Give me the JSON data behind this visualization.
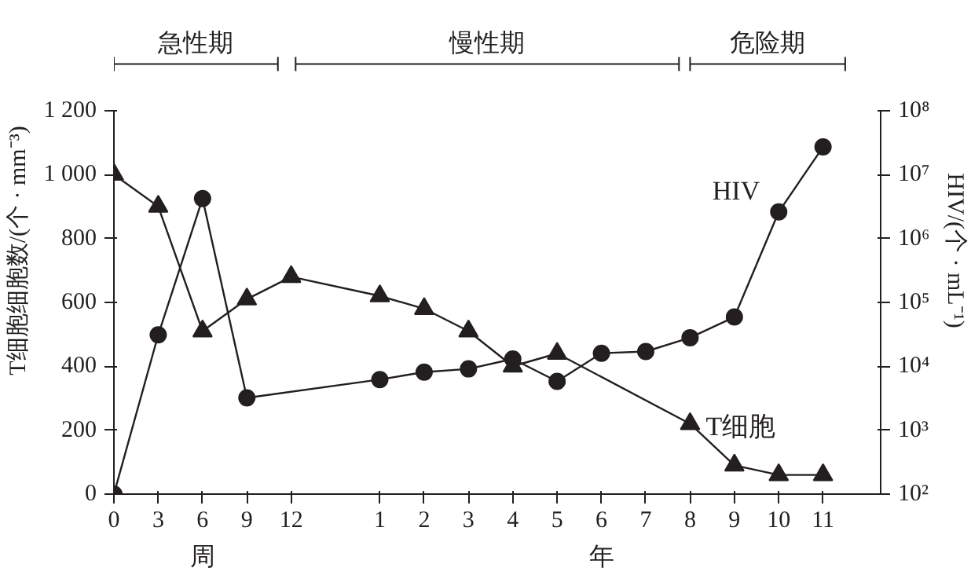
{
  "chart_data": {
    "type": "line",
    "ylabel": "T细胞细胞数/(个 · mm⁻³)",
    "y2label": "HIV/(个 · mL⁻¹)",
    "annotations": [
      "急性期",
      "慢性期",
      "危险期",
      "周",
      "年"
    ],
    "categories": [
      "0",
      "3",
      "6",
      "9",
      "12",
      null,
      "1",
      "2",
      "3",
      "4",
      "5",
      "6",
      "7",
      "8",
      "9",
      "10",
      "11"
    ],
    "ylim": [
      0,
      1200
    ],
    "yticks": [
      0,
      200,
      400,
      600,
      800,
      {
        "value": 1000,
        "label": "1 000"
      },
      {
        "value": 1200,
        "label": "1 200"
      }
    ],
    "y2lim": [
      100,
      100000000
    ],
    "y2ticks": [
      {
        "value": 100,
        "label": "10²"
      },
      {
        "value": 1000,
        "label": "10³"
      },
      {
        "value": 10000,
        "label": "10⁴"
      },
      {
        "value": 100000,
        "label": "10⁵"
      },
      {
        "value": 1000000,
        "label": "10⁶"
      },
      {
        "value": 10000000,
        "label": "10⁷"
      },
      {
        "value": 100000000,
        "label": "10⁸"
      }
    ],
    "log": "y2",
    "grid": false,
    "series": [
      {
        "name": "T细胞",
        "color": "#231f20",
        "marker": "triangle",
        "values": [
          1000,
          900,
          510,
          610,
          680,
          null,
          620,
          580,
          510,
          400,
          440,
          null,
          null,
          220,
          90,
          60,
          60
        ]
      },
      {
        "name": "HIV",
        "color": "#231f20",
        "marker": "circle",
        "axis": "y2",
        "values": [
          100,
          31000,
          4200000,
          3200,
          null,
          null,
          6200,
          8100,
          9100,
          13000,
          5800,
          16000,
          17000,
          28000,
          59000,
          2600000,
          27000000
        ]
      }
    ]
  }
}
